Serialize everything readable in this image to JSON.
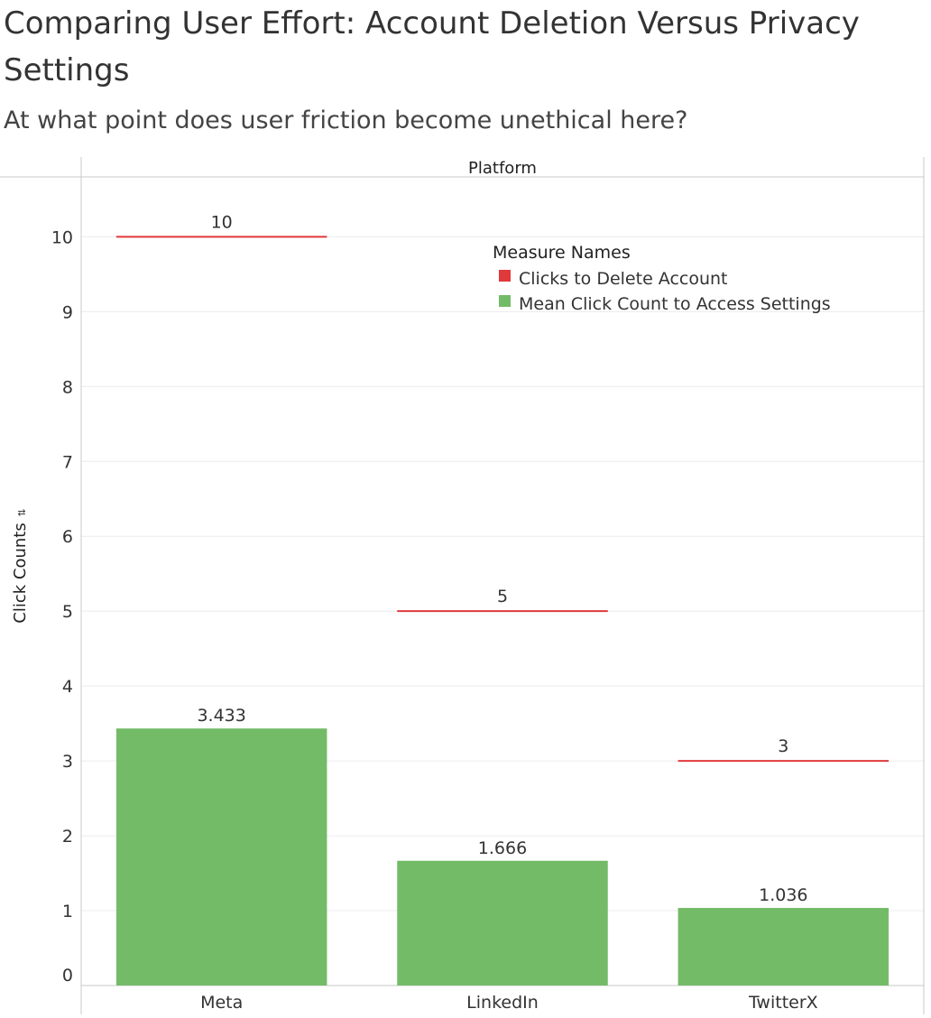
{
  "title": "Comparing User Effort: Account Deletion Versus Privacy Settings",
  "subtitle": "At what point does user friction become unethical here?",
  "colors": {
    "delete": "#e0393b",
    "settings": "#74bb68",
    "grid": "#ececec",
    "axis": "#c8c8c8",
    "text": "#333333"
  },
  "chart_data": {
    "type": "bar",
    "column_header": "Platform",
    "ylabel": "Click Counts",
    "ylim": [
      0,
      10.8
    ],
    "yticks": [
      0,
      1,
      2,
      3,
      4,
      5,
      6,
      7,
      8,
      9,
      10
    ],
    "categories": [
      "Meta",
      "LinkedIn",
      "TwitterX"
    ],
    "legend": {
      "title": "Measure Names",
      "position": "top-right",
      "items": [
        "Clicks to Delete Account",
        "Mean Click Count to Access Settings"
      ]
    },
    "series": [
      {
        "name": "Mean Click Count to Access Settings",
        "mark": "bar",
        "values": [
          3.433,
          1.666,
          1.036
        ],
        "labels": [
          "3.433",
          "1.666",
          "1.036"
        ]
      },
      {
        "name": "Clicks to Delete Account",
        "mark": "reference-line",
        "values": [
          10,
          5,
          3
        ],
        "labels": [
          "10",
          "5",
          "3"
        ]
      }
    ],
    "grid": true
  }
}
